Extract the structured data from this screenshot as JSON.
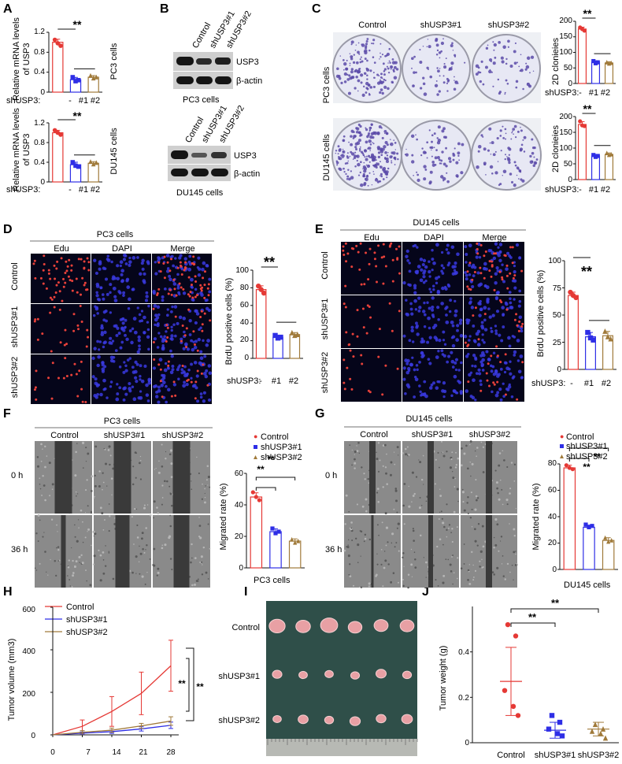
{
  "panel_letters": [
    "A",
    "B",
    "C",
    "D",
    "E",
    "F",
    "G",
    "H",
    "I",
    "J"
  ],
  "significance": "**",
  "colors": {
    "control": "#e53935",
    "sh1": "#2e2ee6",
    "sh2": "#a07a3a",
    "wb_bg": "#cfcfcf",
    "band": "#111111",
    "plate_bg": "#e7e8f4",
    "colony": "#5a4aa8",
    "fluor_bg": "#05051a",
    "micro_bg": "#777777"
  },
  "common": {
    "shUSP3_prefix": "shUSP3:",
    "minus": "-",
    "tick1": "#1",
    "tick2": "#2"
  },
  "groups": [
    "Control",
    "shUSP3#1",
    "shUSP3#2"
  ],
  "fluor_channels": [
    "Edu",
    "DAPI",
    "Merge"
  ],
  "timepoints": [
    "0 h",
    "36 h"
  ],
  "panelA": {
    "ylabel_line1": "Relative mRNA levels",
    "ylabel_line2": "of USP3",
    "top_side": "PC3 cells",
    "bottom_side": "DU145 cells",
    "ticks": [
      "0",
      "0.4",
      "0.8",
      "1.2"
    ]
  },
  "panelB": {
    "labels": [
      "USP3",
      "β-actin"
    ],
    "top_caption": "PC3 cells",
    "bottom_caption": "DU145 cells"
  },
  "panelC": {
    "side_top": "PC3 cells",
    "side_bottom": "DU145 cells",
    "ylabel": "2D clonieies",
    "ticks": [
      "0",
      "50",
      "100",
      "150",
      "200"
    ]
  },
  "panelD": {
    "title": "PC3 cells",
    "ylabel": "BrdU positive cells (%)",
    "ticks": [
      "0",
      "20",
      "40",
      "60",
      "80",
      "100"
    ]
  },
  "panelE": {
    "title": "DU145 cells",
    "ylabel": "BrdU positive cells (%)",
    "ticks": [
      "0",
      "25",
      "50",
      "75",
      "100"
    ]
  },
  "panelF": {
    "title": "PC3 cells",
    "caption": "PC3 cells",
    "ylabel": "Migrated rate (%)",
    "ticks": [
      "0",
      "20",
      "40",
      "60"
    ]
  },
  "panelG": {
    "title": "DU145 cells",
    "caption": "DU145 cells",
    "ylabel": "Migrated rate (%)",
    "ticks": [
      "0",
      "20",
      "40",
      "60",
      "80"
    ]
  },
  "panelH": {
    "ylabel": "Tumor volume (mm3)",
    "yticks": [
      "0",
      "200",
      "400",
      "600"
    ],
    "xticks": [
      "0",
      "7",
      "14",
      "21",
      "28"
    ]
  },
  "panelJ": {
    "ylabel": "Tumor weight (g)",
    "ticks": [
      "0",
      "0.2",
      "0.4"
    ]
  },
  "chart_data": [
    {
      "id": "A-PC3",
      "type": "bar",
      "title": "",
      "xlabel": "",
      "ylabel": "Relative mRNA levels of USP3",
      "categories": [
        "-",
        "#1",
        "#2"
      ],
      "values": [
        1.0,
        0.25,
        0.3
      ],
      "points": [
        [
          1.05,
          0.98,
          0.93
        ],
        [
          0.3,
          0.22,
          0.24
        ],
        [
          0.33,
          0.28,
          0.3
        ]
      ],
      "ylim": [
        0,
        1.2
      ]
    },
    {
      "id": "A-DU145",
      "type": "bar",
      "title": "",
      "xlabel": "",
      "ylabel": "Relative mRNA levels of USP3",
      "categories": [
        "-",
        "#1",
        "#2"
      ],
      "values": [
        1.0,
        0.35,
        0.38
      ],
      "points": [
        [
          1.05,
          1.0,
          0.96
        ],
        [
          0.4,
          0.33,
          0.31
        ],
        [
          0.41,
          0.36,
          0.39
        ]
      ],
      "ylim": [
        0,
        1.2
      ]
    },
    {
      "id": "C-PC3",
      "type": "bar",
      "title": "",
      "xlabel": "",
      "ylabel": "2D clonieies",
      "categories": [
        "-",
        "#1",
        "#2"
      ],
      "values": [
        175,
        68,
        66
      ],
      "points": [
        [
          180,
          175,
          170
        ],
        [
          72,
          65,
          68
        ],
        [
          68,
          64,
          66
        ]
      ],
      "ylim": [
        0,
        200
      ]
    },
    {
      "id": "C-DU145",
      "type": "bar",
      "title": "",
      "xlabel": "",
      "ylabel": "2D clonieies",
      "categories": [
        "-",
        "#1",
        "#2"
      ],
      "values": [
        175,
        75,
        80
      ],
      "points": [
        [
          185,
          172,
          170
        ],
        [
          78,
          72,
          75
        ],
        [
          84,
          78,
          80
        ]
      ],
      "ylim": [
        0,
        200
      ]
    },
    {
      "id": "D",
      "type": "bar",
      "title": "",
      "xlabel": "",
      "ylabel": "BrdU positive cells (%)",
      "categories": [
        "-",
        "#1",
        "#2"
      ],
      "values": [
        78,
        24,
        27
      ],
      "points": [
        [
          82,
          78,
          74
        ],
        [
          26,
          23,
          24
        ],
        [
          29,
          26,
          27
        ]
      ],
      "ylim": [
        0,
        100
      ]
    },
    {
      "id": "E",
      "type": "bar",
      "title": "",
      "xlabel": "",
      "ylabel": "BrdU positive cells (%)",
      "categories": [
        "-",
        "#1",
        "#2"
      ],
      "values": [
        68,
        30,
        31
      ],
      "points": [
        [
          71,
          68,
          66
        ],
        [
          34,
          29,
          27
        ],
        [
          35,
          30,
          28
        ]
      ],
      "ylim": [
        0,
        100
      ]
    },
    {
      "id": "F",
      "type": "bar",
      "title": "",
      "xlabel": "",
      "ylabel": "Migrated rate (%)",
      "categories": [
        "Control",
        "shUSP3#1",
        "shUSP3#2"
      ],
      "values": [
        45,
        23,
        17
      ],
      "points": [
        [
          48,
          45,
          43
        ],
        [
          25,
          22,
          23
        ],
        [
          18,
          16,
          17
        ]
      ],
      "ylim": [
        0,
        60
      ]
    },
    {
      "id": "G",
      "type": "bar",
      "title": "",
      "xlabel": "",
      "ylabel": "Migrated rate (%)",
      "categories": [
        "Control",
        "shUSP3#1",
        "shUSP3#2"
      ],
      "values": [
        77,
        32,
        22
      ],
      "points": [
        [
          79,
          77,
          76
        ],
        [
          34,
          32,
          33
        ],
        [
          24,
          21,
          22
        ]
      ],
      "ylim": [
        0,
        80
      ]
    },
    {
      "id": "H",
      "type": "line",
      "title": "",
      "xlabel": "",
      "ylabel": "Tumor volume (mm3)",
      "x": [
        0,
        7,
        14,
        21,
        28
      ],
      "ylim": [
        0,
        600
      ],
      "series": [
        {
          "name": "Control",
          "values": [
            0,
            40,
            110,
            195,
            325
          ],
          "err": [
            0,
            30,
            70,
            100,
            120
          ]
        },
        {
          "name": "shUSP3#1",
          "values": [
            0,
            8,
            15,
            28,
            45
          ],
          "err": [
            0,
            6,
            8,
            10,
            15
          ]
        },
        {
          "name": "shUSP3#2",
          "values": [
            0,
            12,
            22,
            42,
            65
          ],
          "err": [
            0,
            8,
            10,
            12,
            20
          ]
        }
      ]
    },
    {
      "id": "J",
      "type": "scatter",
      "title": "",
      "xlabel": "",
      "ylabel": "Tumor weight (g)",
      "categories": [
        "Control",
        "shUSP3#1",
        "shUSP3#2"
      ],
      "means": [
        0.27,
        0.055,
        0.06
      ],
      "sd": [
        0.15,
        0.035,
        0.03
      ],
      "points": [
        [
          0.52,
          0.47,
          0.23,
          0.16,
          0.12
        ],
        [
          0.12,
          0.09,
          0.06,
          0.04,
          0.03
        ],
        [
          0.08,
          0.06,
          0.05,
          0.04,
          0.02
        ]
      ],
      "ylim": [
        0,
        0.6
      ]
    }
  ]
}
